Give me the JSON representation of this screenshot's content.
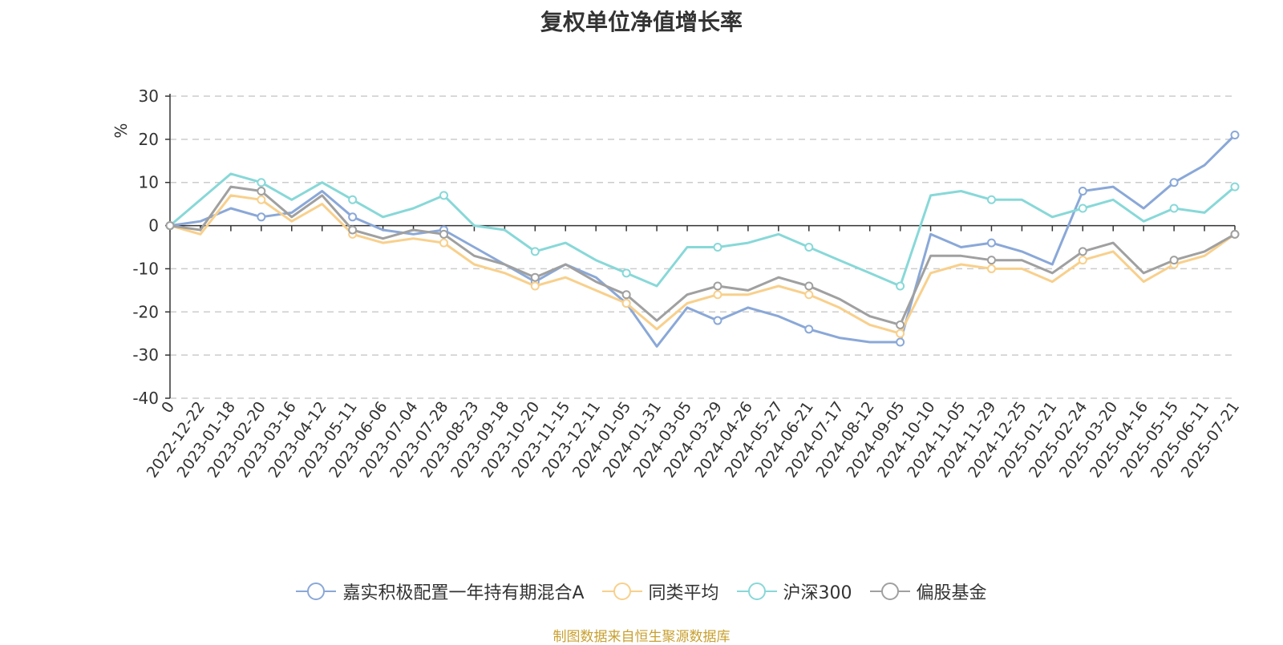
{
  "chart_data": {
    "type": "line",
    "title": "复权单位净值增长率",
    "ylabel": "%",
    "ylim": [
      -40,
      30
    ],
    "yticks": [
      30,
      20,
      10,
      0,
      -10,
      -20,
      -30,
      -40
    ],
    "grid": true,
    "legend_position": "bottom",
    "source": "制图数据来自恒生聚源数据库",
    "x": [
      "0",
      "2022-12-22",
      "2023-01-18",
      "2023-02-20",
      "2023-03-16",
      "2023-04-12",
      "2023-05-11",
      "2023-06-06",
      "2023-07-04",
      "2023-07-28",
      "2023-08-23",
      "2023-09-18",
      "2023-10-20",
      "2023-11-15",
      "2023-12-11",
      "2024-01-05",
      "2024-01-31",
      "2024-03-05",
      "2024-03-29",
      "2024-04-26",
      "2024-05-27",
      "2024-06-21",
      "2024-07-17",
      "2024-08-12",
      "2024-09-05",
      "2024-10-10",
      "2024-11-05",
      "2024-11-29",
      "2024-12-25",
      "2025-01-21",
      "2025-02-24",
      "2025-03-20",
      "2025-04-16",
      "2025-05-15",
      "2025-06-11",
      "2025-07-21"
    ],
    "series": [
      {
        "name": "嘉实积极配置一年持有期混合A",
        "color": "#8aa8d8",
        "values": [
          0,
          1,
          4,
          2,
          3,
          8,
          2,
          -1,
          -2,
          -1,
          -5,
          -9,
          -13,
          -9,
          -12,
          -18,
          -28,
          -19,
          -22,
          -19,
          -21,
          -24,
          -26,
          -27,
          -27,
          -2,
          -5,
          -4,
          -6,
          -9,
          8,
          9,
          4,
          10,
          14,
          21
        ]
      },
      {
        "name": "同类平均",
        "color": "#f8d08c",
        "values": [
          0,
          -2,
          7,
          6,
          1,
          5,
          -2,
          -4,
          -3,
          -4,
          -9,
          -11,
          -14,
          -12,
          -15,
          -18,
          -24,
          -18,
          -16,
          -16,
          -14,
          -16,
          -19,
          -23,
          -25,
          -11,
          -9,
          -10,
          -10,
          -13,
          -8,
          -6,
          -13,
          -9,
          -7,
          -2
        ]
      },
      {
        "name": "沪深300",
        "color": "#88d8d8",
        "values": [
          0,
          6,
          12,
          10,
          6,
          10,
          6,
          2,
          4,
          7,
          0,
          -1,
          -6,
          -4,
          -8,
          -11,
          -14,
          -5,
          -5,
          -4,
          -2,
          -5,
          -8,
          -11,
          -14,
          7,
          8,
          6,
          6,
          2,
          4,
          6,
          1,
          4,
          3,
          9
        ]
      },
      {
        "name": "偏股基金",
        "color": "#a0a0a0",
        "values": [
          0,
          -1,
          9,
          8,
          2,
          7,
          -1,
          -3,
          -1,
          -2,
          -7,
          -9,
          -12,
          -9,
          -13,
          -16,
          -22,
          -16,
          -14,
          -15,
          -12,
          -14,
          -17,
          -21,
          -23,
          -7,
          -7,
          -8,
          -8,
          -11,
          -6,
          -4,
          -11,
          -8,
          -6,
          -2
        ]
      }
    ]
  }
}
